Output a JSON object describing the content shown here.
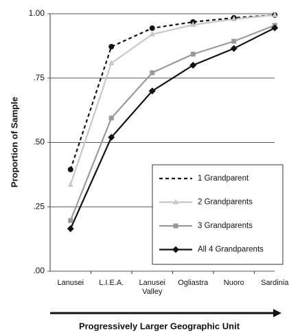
{
  "chart_data": {
    "type": "line",
    "y_label": "Proportion of Sample",
    "x_label": "Progressively Larger Geographic Unit",
    "categories": [
      "Lanusei",
      "L.I.E.A.",
      "Lanusei Valley",
      "Ogliastra",
      "Nuoro",
      "Sardinia"
    ],
    "series": [
      {
        "name": "1 Grandparent",
        "color": "#111111",
        "marker": "circle",
        "dashed": true,
        "values": [
          0.395,
          0.872,
          0.944,
          0.968,
          0.984,
          0.995
        ]
      },
      {
        "name": "2 Grandparents",
        "color": "#c8c8c8",
        "marker": "triangle",
        "dashed": false,
        "values": [
          0.336,
          0.808,
          0.92,
          0.957,
          0.979,
          0.995
        ]
      },
      {
        "name": "3 Grandparents",
        "color": "#999999",
        "marker": "square",
        "dashed": false,
        "values": [
          0.197,
          0.595,
          0.771,
          0.843,
          0.893,
          0.955
        ]
      },
      {
        "name": "All 4 Grandparents",
        "color": "#111111",
        "marker": "diamond",
        "dashed": false,
        "values": [
          0.165,
          0.52,
          0.7,
          0.8,
          0.865,
          0.945
        ]
      }
    ],
    "ylim": [
      0,
      1
    ],
    "yticks": [
      {
        "value": 0,
        "label": ".00"
      },
      {
        "value": 0.25,
        "label": ".25"
      },
      {
        "value": 0.5,
        "label": ".50"
      },
      {
        "value": 0.75,
        "label": ".75"
      },
      {
        "value": 1,
        "label": "1.00"
      }
    ],
    "grid": true,
    "legend": "lower right"
  }
}
